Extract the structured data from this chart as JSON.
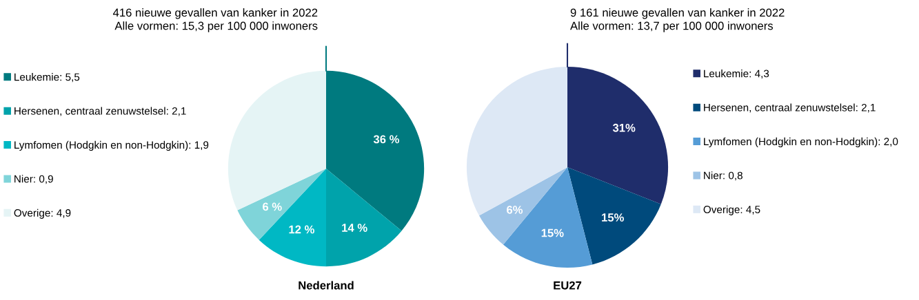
{
  "chart_data": [
    {
      "type": "pie",
      "title": "Nederland",
      "annotations": [
        "416 nieuwe gevallen van kanker in 2022\nAlle vormen: 15,3 per 100 000 inwoners"
      ],
      "categories": [
        "Leukemie: 5,5",
        "Hersenen, centraal zenuwstelsel: 2,1",
        "Lymfomen (Hodgkin en non-Hodgkin): 1,9",
        "Nier: 0,9",
        "Overige: 4,9"
      ],
      "values": [
        36,
        14,
        12,
        6,
        32
      ],
      "value_labels": [
        "36 %",
        "14 %",
        "12 %",
        "6 %",
        null
      ],
      "colors": [
        "#007a7f",
        "#00a3ab",
        "#00b8c4",
        "#7fd4d9",
        "#e5f4f5"
      ],
      "legend": "left"
    },
    {
      "type": "pie",
      "title": "EU27",
      "annotations": [
        "9 161 nieuwe gevallen van kanker in 2022\nAlle vormen: 13,7 per 100 000 inwoners"
      ],
      "categories": [
        "Leukemie: 4,3",
        "Hersenen, centraal zenuwstelsel: 2,1",
        "Lymfomen (Hodgkin en non-Hodgkin): 2,0",
        "Nier: 0,8",
        "Overige: 4,5"
      ],
      "values": [
        31,
        15,
        15,
        6,
        33
      ],
      "value_labels": [
        "31%",
        "15%",
        "15%",
        "6%",
        null
      ],
      "colors": [
        "#1f2d6b",
        "#004a7c",
        "#559cd6",
        "#9dc3e6",
        "#dde8f5"
      ],
      "legend": "right"
    }
  ]
}
